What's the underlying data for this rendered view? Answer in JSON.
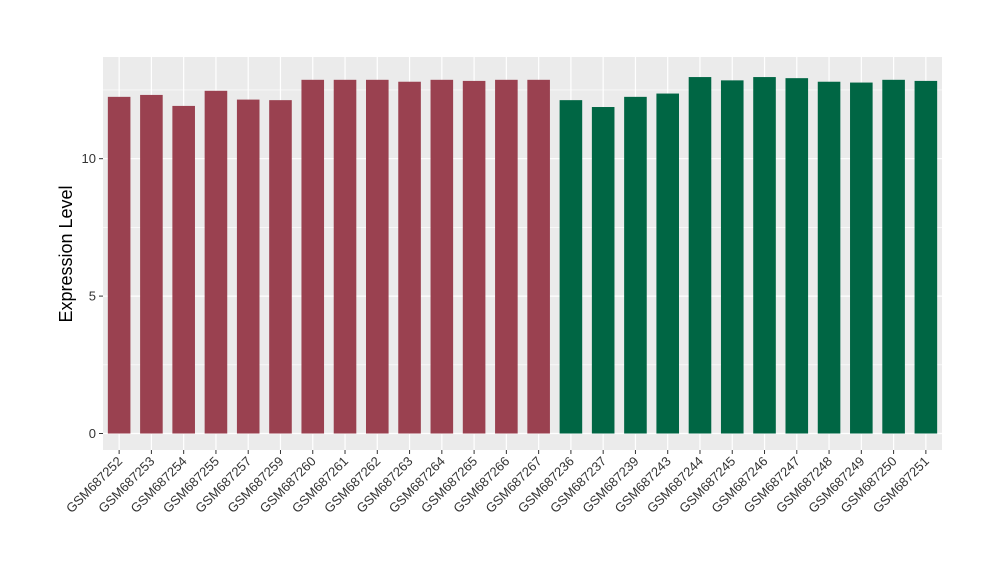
{
  "chart_data": {
    "type": "bar",
    "title": "",
    "xlabel": "",
    "ylabel": "Expression Level",
    "ylim": [
      -0.6,
      13.7
    ],
    "yticks": [
      0,
      5,
      10
    ],
    "grid": true,
    "legend": "none",
    "background": "#ebebeb",
    "categories": [
      "GSM687252",
      "GSM687253",
      "GSM687254",
      "GSM687255",
      "GSM687257",
      "GSM687259",
      "GSM687260",
      "GSM687261",
      "GSM687262",
      "GSM687263",
      "GSM687264",
      "GSM687265",
      "GSM687266",
      "GSM687267",
      "GSM687236",
      "GSM687237",
      "GSM687239",
      "GSM687243",
      "GSM687244",
      "GSM687245",
      "GSM687246",
      "GSM687247",
      "GSM687248",
      "GSM687249",
      "GSM687250",
      "GSM687251"
    ],
    "values": [
      12.25,
      12.32,
      11.92,
      12.47,
      12.15,
      12.13,
      12.87,
      12.87,
      12.87,
      12.8,
      12.87,
      12.83,
      12.87,
      12.87,
      12.13,
      11.88,
      12.25,
      12.37,
      12.97,
      12.85,
      12.97,
      12.93,
      12.8,
      12.77,
      12.87,
      12.83
    ],
    "colors": [
      "#9a4150",
      "#9a4150",
      "#9a4150",
      "#9a4150",
      "#9a4150",
      "#9a4150",
      "#9a4150",
      "#9a4150",
      "#9a4150",
      "#9a4150",
      "#9a4150",
      "#9a4150",
      "#9a4150",
      "#9a4150",
      "#006644",
      "#006644",
      "#006644",
      "#006644",
      "#006644",
      "#006644",
      "#006644",
      "#006644",
      "#006644",
      "#006644",
      "#006644",
      "#006644"
    ]
  }
}
